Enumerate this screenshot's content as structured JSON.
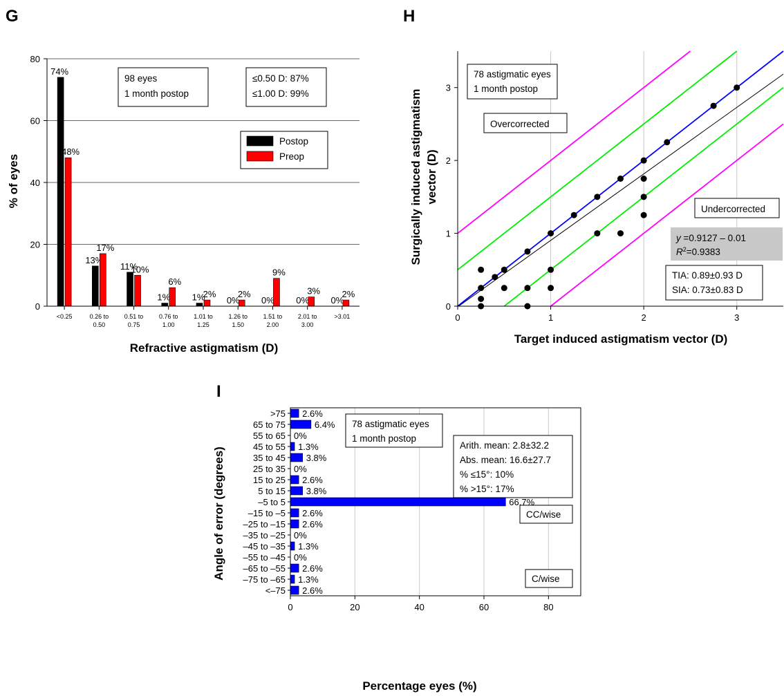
{
  "chart_data": [
    {
      "panel": "G",
      "type": "bar",
      "xlabel": "Refractive astigmatism (D)",
      "ylabel": "% of eyes",
      "ylim": [
        0,
        80
      ],
      "yticks": [
        0,
        20,
        40,
        60,
        80
      ],
      "grid": "horizontal",
      "legend_position": "right",
      "categories": [
        "<0.25",
        "0.26 to 0.50",
        "0.51 to 0.75",
        "0.76 to 1.00",
        "1.01 to 1.25",
        "1.26 to 1.50",
        "1.51 to 2.00",
        "2.01 to 3.00",
        ">3.01"
      ],
      "category_lines": [
        [
          "<0.25"
        ],
        [
          "0.26 to",
          "0.50"
        ],
        [
          "0.51 to",
          "0.75"
        ],
        [
          "0.76 to",
          "1.00"
        ],
        [
          "1.01 to",
          "1.25"
        ],
        [
          "1.26 to",
          "1.50"
        ],
        [
          "1.51 to",
          "2.00"
        ],
        [
          "2.01 to",
          "3.00"
        ],
        [
          ">3.01"
        ]
      ],
      "series": [
        {
          "name": "Postop",
          "color": "#000000",
          "values": [
            74,
            13,
            11,
            1,
            1,
            0,
            0,
            0,
            0
          ],
          "labels": [
            "74%",
            "13%",
            "11%",
            "1%",
            "1%",
            "0%",
            "0%",
            "0%",
            "0%"
          ]
        },
        {
          "name": "Preop",
          "color": "#ff0000",
          "values": [
            48,
            17,
            10,
            6,
            2,
            2,
            9,
            3,
            2
          ],
          "labels": [
            "48%",
            "17%",
            "10%",
            "6%",
            "2%",
            "2%",
            "9%",
            "3%",
            "2%"
          ]
        }
      ],
      "annotations": [
        {
          "lines": [
            "98 eyes",
            "1 month postop"
          ]
        },
        {
          "lines": [
            "≤0.50 D: 87%",
            "≤1.00 D: 99%"
          ]
        }
      ]
    },
    {
      "panel": "H",
      "type": "scatter",
      "xlabel": "Target induced astigmatism vector (D)",
      "ylabel_lines": [
        "Surgically induced astigmatism",
        "vector (D)"
      ],
      "xlim": [
        0,
        3.5
      ],
      "ylim": [
        0,
        3.5
      ],
      "xticks": [
        0,
        1,
        2,
        3
      ],
      "yticks": [
        0,
        1,
        2,
        3
      ],
      "grid": "vertical",
      "points": [
        [
          0.25,
          0.5
        ],
        [
          0.25,
          0.25
        ],
        [
          0.25,
          0.1
        ],
        [
          0.25,
          0
        ],
        [
          0.4,
          0.4
        ],
        [
          0.5,
          0.5
        ],
        [
          0.5,
          0.25
        ],
        [
          0.75,
          0.75
        ],
        [
          0.75,
          0.25
        ],
        [
          0.75,
          0
        ],
        [
          1,
          1
        ],
        [
          1,
          0.5
        ],
        [
          1,
          0.25
        ],
        [
          1.25,
          1.25
        ],
        [
          1.5,
          1.5
        ],
        [
          1.5,
          1
        ],
        [
          1.75,
          1.75
        ],
        [
          1.75,
          1
        ],
        [
          2,
          2
        ],
        [
          2,
          1.75
        ],
        [
          2,
          1.5
        ],
        [
          2,
          1.25
        ],
        [
          2.25,
          2.25
        ],
        [
          2.75,
          2.75
        ],
        [
          3,
          3
        ]
      ],
      "lines": [
        {
          "kind": "identity",
          "color": "#0000ff",
          "slope": 1,
          "intercept": 0
        },
        {
          "kind": "regression",
          "color": "#000000",
          "slope": 0.9127,
          "intercept": -0.01
        },
        {
          "kind": "±0.50 D",
          "color": "#00ee00",
          "offsets": [
            0.5,
            -0.5
          ]
        },
        {
          "kind": "±1.00 D",
          "color": "#ff00ff",
          "offsets": [
            1.0,
            -1.0
          ]
        }
      ],
      "annotations": {
        "eyes": [
          "78 astigmatic eyes",
          "1 month postop"
        ],
        "over": "Overcorrected",
        "under": "Undercorrected",
        "eq_y": "y",
        "eq_rest": " =0.9127 – 0.01",
        "r_label": "R",
        "r_sup": "2",
        "r_rest": "=0.9383",
        "stats": [
          "TIA: 0.89±0.93 D",
          "SIA: 0.73±0.83 D"
        ]
      }
    },
    {
      "panel": "I",
      "type": "bar",
      "orientation": "horizontal",
      "xlabel": "Percentage eyes (%)",
      "ylabel": "Angle of error (degrees)",
      "xlim": [
        0,
        90
      ],
      "xticks": [
        0,
        20,
        40,
        60,
        80
      ],
      "grid": "vertical",
      "bar_color": "#0000ff",
      "categories": [
        ">75",
        "65 to 75",
        "55 to 65",
        "45 to 55",
        "35 to 45",
        "25 to 35",
        "15 to 25",
        "5 to 15",
        "–5 to 5",
        "–15 to –5",
        "–25 to –15",
        "–35 to –25",
        "–45 to –35",
        "–55 to –45",
        "–65 to –55",
        "–75 to –65",
        "<–75"
      ],
      "values": [
        2.6,
        6.4,
        0,
        1.3,
        3.8,
        0,
        2.6,
        3.8,
        66.7,
        2.6,
        2.6,
        0,
        1.3,
        0,
        2.6,
        1.3,
        2.6
      ],
      "labels": [
        "2.6%",
        "6.4%",
        "0%",
        "1.3%",
        "3.8%",
        "0%",
        "2.6%",
        "3.8%",
        "66.7%",
        "2.6%",
        "2.6%",
        "0%",
        "1.3%",
        "0%",
        "2.6%",
        "1.3%",
        "2.6%"
      ],
      "annotations": {
        "eyes": [
          "78 astigmatic eyes",
          "1 month postop"
        ],
        "stats": [
          "Arith. mean: 2.8±32.2",
          "Abs. mean: 16.6±27.7",
          "% ≤15°: 10%",
          "% >15°: 17%"
        ],
        "ccw": "CC/wise",
        "cw": "C/wise"
      }
    }
  ],
  "panels": {
    "g": "G",
    "h": "H",
    "i": "I"
  }
}
